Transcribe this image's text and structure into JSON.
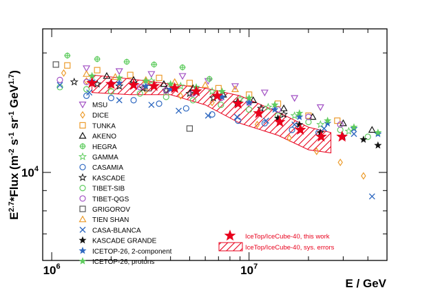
{
  "chart_data": {
    "type": "scatter",
    "title": "",
    "xlabel": "E / GeV",
    "ylabel": {
      "main": "E",
      "sup1": "2.7",
      "mid": "*Flux (m",
      "sup2": "-2",
      "mid2": " s",
      "sup3": "-1",
      "mid3": " sr",
      "sup4": "-1",
      "mid4": " GeV",
      "sup5": "1.7",
      "end": ")"
    },
    "x_scale": "log",
    "y_scale": "log",
    "xlim": [
      900000,
      50000000
    ],
    "ylim": [
      6000,
      23000
    ],
    "x_ticks": [
      {
        "value": 1000000,
        "base": "10",
        "exp": "6"
      },
      {
        "value": 10000000,
        "base": "10",
        "exp": "7"
      }
    ],
    "y_ticks": [
      {
        "value": 10000,
        "base": "10",
        "exp": "4"
      }
    ],
    "band": {
      "name": "IceTop/IceCube-40, sys. errors",
      "color": "#e8001c",
      "points": [
        {
          "x": 1600000,
          "lo": 15900,
          "hi": 17600
        },
        {
          "x": 2500000,
          "lo": 15700,
          "hi": 17200
        },
        {
          "x": 4000000,
          "lo": 15700,
          "hi": 16700
        },
        {
          "x": 6000000,
          "lo": 14800,
          "hi": 16300
        },
        {
          "x": 9000000,
          "lo": 13300,
          "hi": 15600
        },
        {
          "x": 14000000,
          "lo": 12400,
          "hi": 14200
        },
        {
          "x": 20000000,
          "lo": 11400,
          "hi": 13000
        },
        {
          "x": 26000000,
          "lo": 11200,
          "hi": 12600
        }
      ]
    },
    "series": [
      {
        "name": "MSU",
        "marker": "tri-down",
        "color": "#a14fc3",
        "points": [
          [
            1500000,
            18300
          ],
          [
            2200000,
            18000
          ],
          [
            3200000,
            17700
          ],
          [
            4600000,
            17500
          ],
          [
            6200000,
            17000
          ],
          [
            8500000,
            16500
          ],
          [
            12000000,
            15900
          ],
          [
            17000000,
            15400
          ],
          [
            23000000,
            14600
          ]
        ]
      },
      {
        "name": "DICE",
        "marker": "diamond",
        "color": "#ec9b2b",
        "points": [
          [
            1150000,
            17800
          ],
          [
            1500000,
            17000
          ],
          [
            2000000,
            16500
          ],
          [
            3000000,
            16100
          ],
          [
            4500000,
            15600
          ],
          [
            6500000,
            15000
          ],
          [
            11000000,
            13200
          ],
          [
            16000000,
            12200
          ],
          [
            22000000,
            11300
          ],
          [
            29000000,
            10600
          ],
          [
            38000000,
            9800
          ]
        ]
      },
      {
        "name": "TUNKA",
        "marker": "square",
        "color": "#ec9b2b",
        "points": [
          [
            1200000,
            18600
          ],
          [
            1700000,
            18100
          ],
          [
            2500000,
            17600
          ],
          [
            3500000,
            17300
          ],
          [
            5000000,
            16800
          ],
          [
            7000000,
            16300
          ],
          [
            10000000,
            15700
          ],
          [
            14000000,
            14900
          ],
          [
            20000000,
            13900
          ],
          [
            28000000,
            13500
          ]
        ]
      },
      {
        "name": "AKENO",
        "marker": "triangle",
        "color": "#111111",
        "points": [
          [
            1900000,
            17500
          ],
          [
            2600000,
            17100
          ],
          [
            3700000,
            16700
          ],
          [
            5200000,
            16300
          ],
          [
            7400000,
            15700
          ],
          [
            10500000,
            15200
          ],
          [
            15000000,
            14500
          ],
          [
            21000000,
            13800
          ],
          [
            30000000,
            13300
          ],
          [
            42000000,
            12800
          ]
        ]
      },
      {
        "name": "HEGRA",
        "marker": "plus-circle",
        "color": "#5ecc5e",
        "points": [
          [
            1200000,
            19700
          ],
          [
            1700000,
            19300
          ],
          [
            2400000,
            19000
          ],
          [
            3300000,
            18700
          ],
          [
            4600000,
            18400
          ],
          [
            6300000,
            17200
          ]
        ]
      },
      {
        "name": "GAMMA",
        "marker": "star-open",
        "color": "#5ecc5e",
        "points": [
          [
            3200000,
            17000
          ],
          [
            4500000,
            16500
          ],
          [
            6500000,
            16000
          ],
          [
            9000000,
            15300
          ],
          [
            12500000,
            14600
          ],
          [
            17000000,
            13900
          ],
          [
            23000000,
            13200
          ],
          [
            32000000,
            12700
          ]
        ]
      },
      {
        "name": "CASAMIA",
        "marker": "circle",
        "color": "#2e68c0",
        "points": [
          [
            1500000,
            15600
          ],
          [
            2000000,
            15400
          ],
          [
            2600000,
            15200
          ],
          [
            3500000,
            14900
          ],
          [
            4800000,
            14500
          ],
          [
            6500000,
            14000
          ],
          [
            8800000,
            13500
          ],
          [
            12000000,
            13300
          ],
          [
            16500000,
            12800
          ],
          [
            22500000,
            12600
          ]
        ]
      },
      {
        "name": "KASCADE",
        "marker": "star-open",
        "color": "#111111",
        "points": [
          [
            1300000,
            16900
          ],
          [
            1700000,
            16700
          ],
          [
            2200000,
            16500
          ],
          [
            2900000,
            16300
          ],
          [
            3800000,
            16100
          ],
          [
            5000000,
            15800
          ],
          [
            6600000,
            15400
          ],
          [
            8700000,
            15000
          ],
          [
            11500000,
            14500
          ],
          [
            15000000,
            14000
          ]
        ]
      },
      {
        "name": "TIBET-SIB",
        "marker": "circle",
        "color": "#5ecc5e",
        "points": [
          [
            1100000,
            16400
          ],
          [
            1500000,
            16200
          ],
          [
            2000000,
            16000
          ],
          [
            2800000,
            15800
          ],
          [
            3800000,
            15500
          ],
          [
            5200000,
            15200
          ],
          [
            7200000,
            14800
          ],
          [
            10000000,
            14400
          ],
          [
            14000000,
            13900
          ],
          [
            20000000,
            13400
          ],
          [
            29000000,
            12800
          ],
          [
            40000000,
            12300
          ]
        ]
      },
      {
        "name": "TIBET-QGS",
        "marker": "circle",
        "color": "#a14fc3",
        "points": [
          [
            1100000,
            17100
          ],
          [
            1500000,
            16900
          ],
          [
            2000000,
            16700
          ],
          [
            2800000,
            16400
          ],
          [
            3800000,
            16100
          ],
          [
            5200000,
            15800
          ],
          [
            7200000,
            15400
          ],
          [
            10000000,
            15000
          ],
          [
            14000000,
            14400
          ],
          [
            20000000,
            13800
          ],
          [
            29000000,
            13200
          ]
        ]
      },
      {
        "name": "GRIGOROV",
        "marker": "square",
        "color": "#555555",
        "points": [
          [
            1050000,
            18700
          ],
          [
            3100000,
            16300
          ],
          [
            5000000,
            12900
          ]
        ]
      },
      {
        "name": "TIEN SHAN",
        "marker": "triangle",
        "color": "#ec9b2b",
        "points": [
          [
            1500000,
            17700
          ],
          [
            2100000,
            17400
          ],
          [
            3000000,
            17100
          ],
          [
            4200000,
            16900
          ],
          [
            6000000,
            16600
          ],
          [
            8500000,
            16200
          ]
        ]
      },
      {
        "name": "CASA-BLANCA",
        "marker": "cross",
        "color": "#2e68c0",
        "points": [
          [
            1100000,
            16600
          ],
          [
            1550000,
            15900
          ],
          [
            2200000,
            15200
          ],
          [
            3200000,
            14800
          ],
          [
            4400000,
            14300
          ],
          [
            6200000,
            13900
          ],
          [
            8700000,
            13800
          ],
          [
            12200000,
            13500
          ],
          [
            17000000,
            13200
          ],
          [
            24000000,
            12900
          ],
          [
            34000000,
            12500
          ],
          [
            42000000,
            8700
          ]
        ]
      },
      {
        "name": "KASCADE GRANDE",
        "marker": "star",
        "color": "#111111",
        "points": [
          [
            14000000,
            13700
          ],
          [
            18000000,
            13200
          ],
          [
            23000000,
            12600
          ],
          [
            30000000,
            12300
          ],
          [
            38000000,
            12100
          ],
          [
            45000000,
            11700
          ]
        ]
      },
      {
        "name": "ICETOP-26, 2-component",
        "marker": "star",
        "color": "#2e68c0",
        "points": [
          [
            1600000,
            17000
          ],
          [
            2200000,
            16800
          ],
          [
            3000000,
            16500
          ],
          [
            4000000,
            16200
          ],
          [
            5400000,
            15900
          ],
          [
            7300000,
            15500
          ],
          [
            10000000,
            15000
          ],
          [
            13500000,
            14400
          ],
          [
            18000000,
            13800
          ],
          [
            25000000,
            13300
          ],
          [
            34000000,
            12900
          ],
          [
            45000000,
            12500
          ]
        ]
      },
      {
        "name": "ICETOP-26, protons",
        "marker": "star",
        "color": "#5ecc5e",
        "points": [
          [
            1600000,
            17500
          ],
          [
            2200000,
            17300
          ],
          [
            3000000,
            17000
          ],
          [
            4000000,
            16700
          ],
          [
            5400000,
            16400
          ],
          [
            7300000,
            16000
          ],
          [
            10000000,
            15400
          ],
          [
            13500000,
            14800
          ],
          [
            18000000,
            14100
          ],
          [
            25000000,
            13500
          ],
          [
            34000000,
            13000
          ],
          [
            45000000,
            12600
          ]
        ]
      },
      {
        "name": "IceTop/IceCube-40, this work",
        "marker": "star",
        "color": "#e8001c",
        "size": 1.6,
        "points": [
          [
            1600000,
            16800
          ],
          [
            2000000,
            16700
          ],
          [
            2600000,
            16600
          ],
          [
            3300000,
            16500
          ],
          [
            4200000,
            16300
          ],
          [
            5400000,
            16000
          ],
          [
            6900000,
            15600
          ],
          [
            8800000,
            14900
          ],
          [
            11200000,
            14100
          ],
          [
            14300000,
            13400
          ],
          [
            18200000,
            12800
          ],
          [
            23200000,
            12300
          ],
          [
            29600000,
            12300
          ]
        ]
      }
    ]
  }
}
